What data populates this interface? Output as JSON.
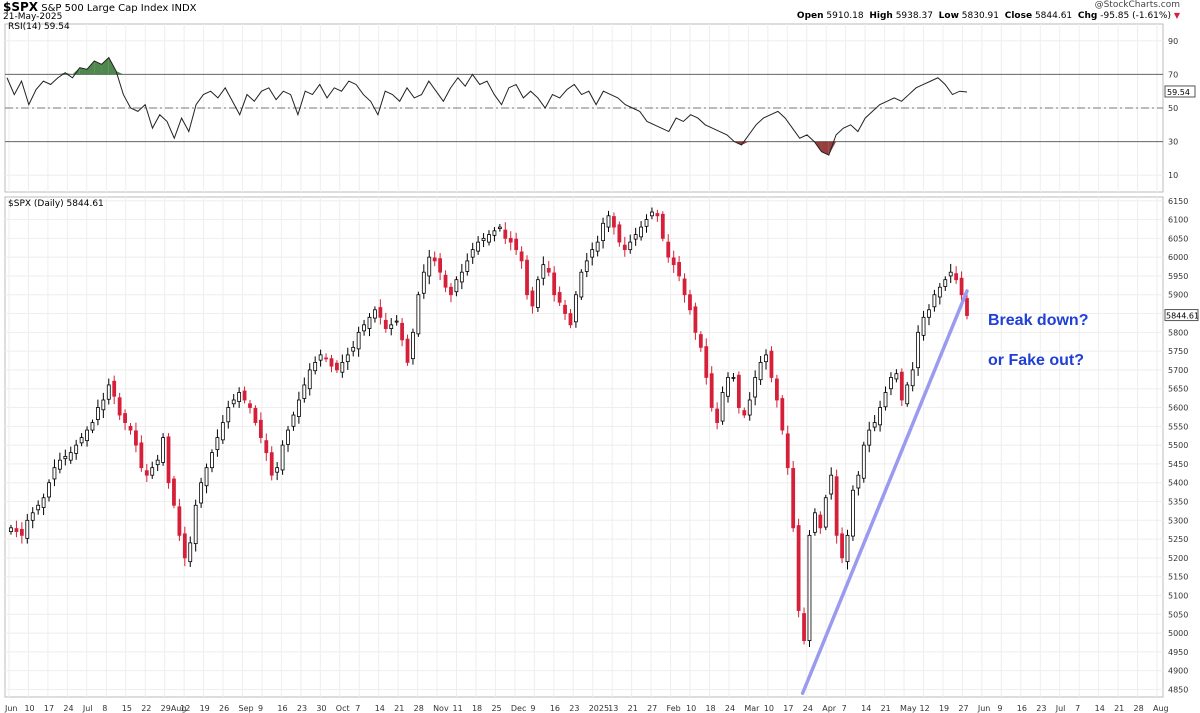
{
  "header": {
    "symbol": "$SPX",
    "name": "S&P 500 Large Cap Index",
    "exchange": "INDX",
    "date": "21-May-2025",
    "credit": "@StockCharts.com",
    "ohlc": {
      "open_label": "Open",
      "open": "5910.18",
      "high_label": "High",
      "high": "5938.37",
      "low_label": "Low",
      "low": "5830.91",
      "close_label": "Close",
      "close": "5844.61",
      "chg_label": "Chg",
      "chg": "-95.85 (-1.61%)"
    }
  },
  "rsi_panel": {
    "legend": "RSI(14) 59.54",
    "current_value": "59.54",
    "ticks": [
      "90",
      "70",
      "50",
      "30",
      "10"
    ],
    "overbought": 70,
    "oversold": 30,
    "midline": 50
  },
  "price_panel": {
    "legend": "$SPX (Daily) 5844.61",
    "current_value": "5844.61",
    "ticks": [
      "6150",
      "6100",
      "6050",
      "6000",
      "5950",
      "5900",
      "5850",
      "5800",
      "5750",
      "5700",
      "5650",
      "5600",
      "5550",
      "5500",
      "5450",
      "5400",
      "5350",
      "5300",
      "5250",
      "5200",
      "5150",
      "5100",
      "5050",
      "5000",
      "4950",
      "4900",
      "4850"
    ]
  },
  "x_axis_labels": [
    "Jun",
    "10",
    "17",
    "24",
    "Jul",
    "8",
    "15",
    "22",
    "29Aug",
    "12",
    "19",
    "26",
    "Sep",
    "9",
    "16",
    "23",
    "30",
    "Oct",
    "7",
    "14",
    "21",
    "28",
    "Nov",
    "11",
    "18",
    "25",
    "Dec",
    "9",
    "16",
    "23",
    "2025",
    "13",
    "21",
    "27",
    "Feb",
    "10",
    "18",
    "24",
    "Mar",
    "10",
    "17",
    "24",
    "Apr",
    "7",
    "14",
    "21",
    "May",
    "12",
    "19",
    "27",
    "Jun",
    "9",
    "16",
    "23",
    "Jul",
    "7",
    "14",
    "21",
    "28",
    "Aug"
  ],
  "annotations": {
    "line1": "Break down?",
    "line2": "or Fake out?"
  },
  "colors": {
    "up": "#000000",
    "down": "#d6203a",
    "trendline": "#9a9af0",
    "annotation": "#1f3fd6",
    "rsi_overbought_fill": "#3c7a3c",
    "rsi_oversold_fill": "#8b2a2a"
  },
  "chart_data": [
    {
      "type": "line",
      "title": "RSI(14)",
      "ylim": [
        0,
        100
      ],
      "series": [
        {
          "name": "RSI(14)",
          "values": [
            68,
            58,
            66,
            52,
            61,
            66,
            64,
            68,
            71,
            68,
            74,
            73,
            78,
            76,
            80,
            72,
            58,
            50,
            48,
            52,
            38,
            46,
            42,
            32,
            44,
            36,
            52,
            58,
            60,
            56,
            62,
            54,
            46,
            58,
            54,
            60,
            62,
            55,
            60,
            58,
            46,
            60,
            58,
            64,
            56,
            62,
            60,
            66,
            64,
            58,
            54,
            46,
            60,
            58,
            54,
            62,
            56,
            58,
            66,
            60,
            54,
            62,
            68,
            63,
            70,
            64,
            66,
            58,
            52,
            62,
            64,
            56,
            60,
            56,
            50,
            58,
            56,
            61,
            64,
            58,
            60,
            52,
            60,
            58,
            56,
            52,
            50,
            48,
            42,
            40,
            38,
            36,
            44,
            42,
            46,
            44,
            40,
            38,
            36,
            34,
            30,
            28,
            34,
            40,
            44,
            46,
            48,
            44,
            38,
            32,
            34,
            30,
            24,
            22,
            34,
            38,
            40,
            36,
            44,
            48,
            52,
            54,
            56,
            54,
            58,
            62,
            64,
            66,
            68,
            64,
            58,
            60,
            59.54
          ]
        }
      ]
    },
    {
      "type": "candlestick",
      "title": "$SPX (Daily)",
      "ylim": [
        4830,
        6160
      ],
      "annotation_trendline": {
        "from": [
          "Apr 7",
          4840
        ],
        "to": [
          "May 21",
          5910
        ]
      },
      "close_path": [
        5280,
        5270,
        5260,
        5300,
        5320,
        5340,
        5360,
        5400,
        5440,
        5460,
        5470,
        5480,
        5500,
        5520,
        5540,
        5560,
        5600,
        5620,
        5660,
        5630,
        5580,
        5560,
        5540,
        5500,
        5440,
        5420,
        5440,
        5460,
        5520,
        5400,
        5340,
        5260,
        5200,
        5240,
        5340,
        5400,
        5440,
        5480,
        5520,
        5560,
        5600,
        5620,
        5640,
        5620,
        5600,
        5560,
        5520,
        5480,
        5420,
        5440,
        5500,
        5540,
        5580,
        5620,
        5660,
        5700,
        5720,
        5740,
        5730,
        5710,
        5700,
        5720,
        5740,
        5760,
        5800,
        5820,
        5840,
        5860,
        5840,
        5810,
        5820,
        5830,
        5780,
        5720,
        5800,
        5900,
        5960,
        6000,
        5990,
        5960,
        5920,
        5900,
        5940,
        5960,
        5990,
        6020,
        6040,
        6050,
        6060,
        6070,
        6080,
        6050,
        6040,
        6020,
        5990,
        5900,
        5870,
        5940,
        5980,
        5960,
        5900,
        5880,
        5850,
        5820,
        5900,
        5960,
        5990,
        6020,
        6040,
        6090,
        6110,
        6080,
        6040,
        6020,
        6040,
        6060,
        6080,
        6100,
        6120,
        6110,
        6050,
        6000,
        5980,
        5950,
        5900,
        5860,
        5800,
        5760,
        5680,
        5600,
        5560,
        5640,
        5680,
        5680,
        5600,
        5580,
        5620,
        5680,
        5720,
        5740,
        5680,
        5620,
        5540,
        5440,
        5280,
        5060,
        4980,
        5260,
        5320,
        5280,
        5360,
        5420,
        5260,
        5200,
        5260,
        5380,
        5420,
        5500,
        5540,
        5560,
        5600,
        5640,
        5680,
        5690,
        5620,
        5660,
        5700,
        5800,
        5840,
        5860,
        5900,
        5920,
        5940,
        5960,
        5940,
        5900,
        5844.61
      ]
    }
  ]
}
